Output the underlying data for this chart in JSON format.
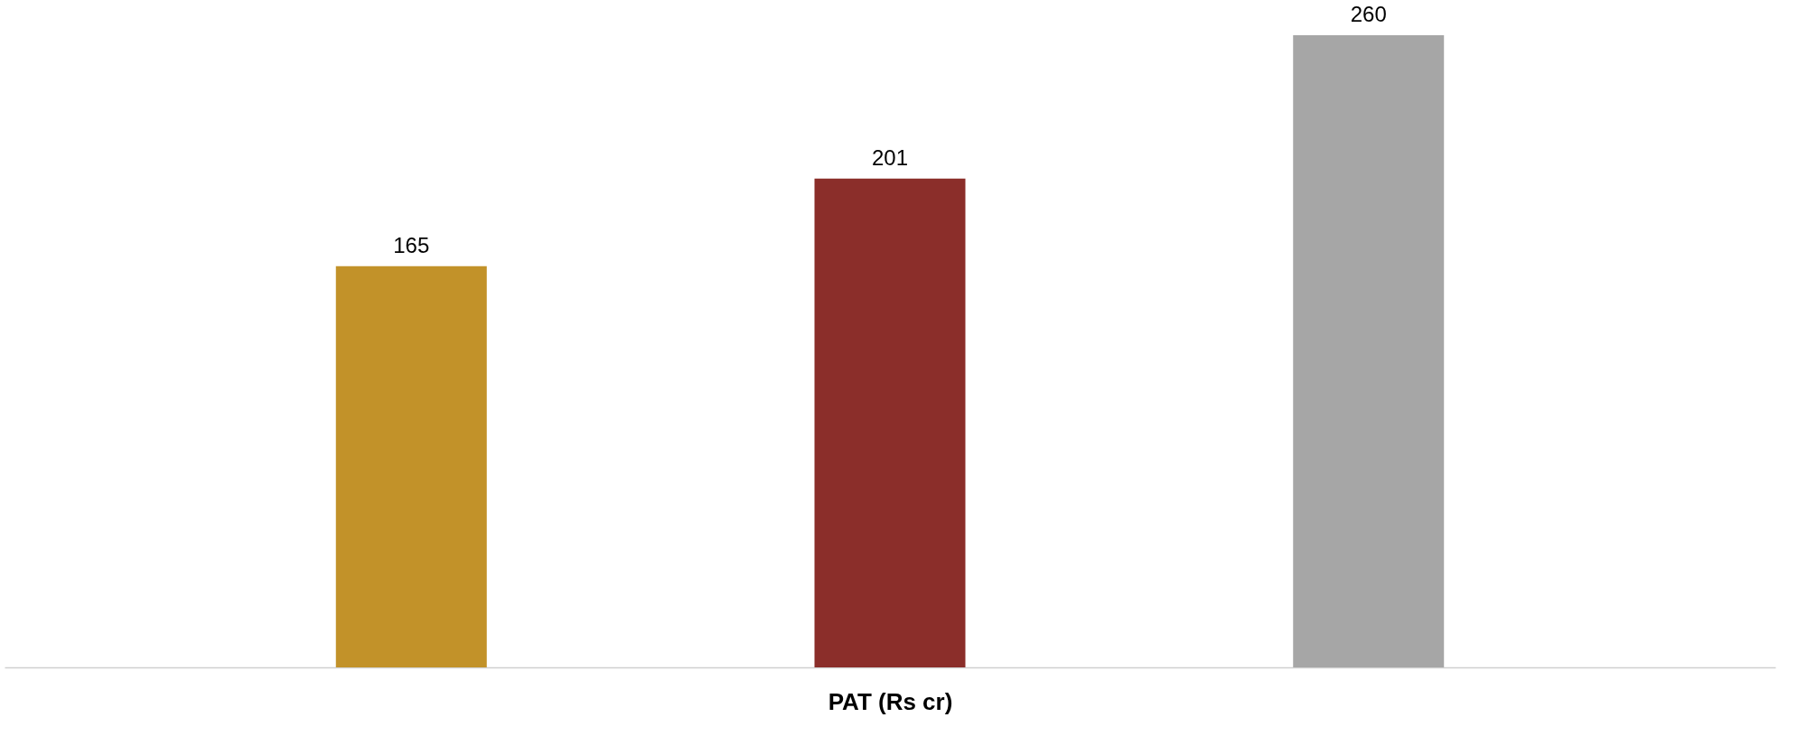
{
  "chart_data": {
    "type": "bar",
    "xlabel": "PAT (Rs cr)",
    "categories": [
      null,
      null,
      null
    ],
    "values": [
      165,
      201,
      260
    ],
    "colors": [
      "#c29229",
      "#8b2e2a",
      "#a6a6a6"
    ],
    "data_labels": true,
    "tick_labels": false,
    "grid": false
  }
}
